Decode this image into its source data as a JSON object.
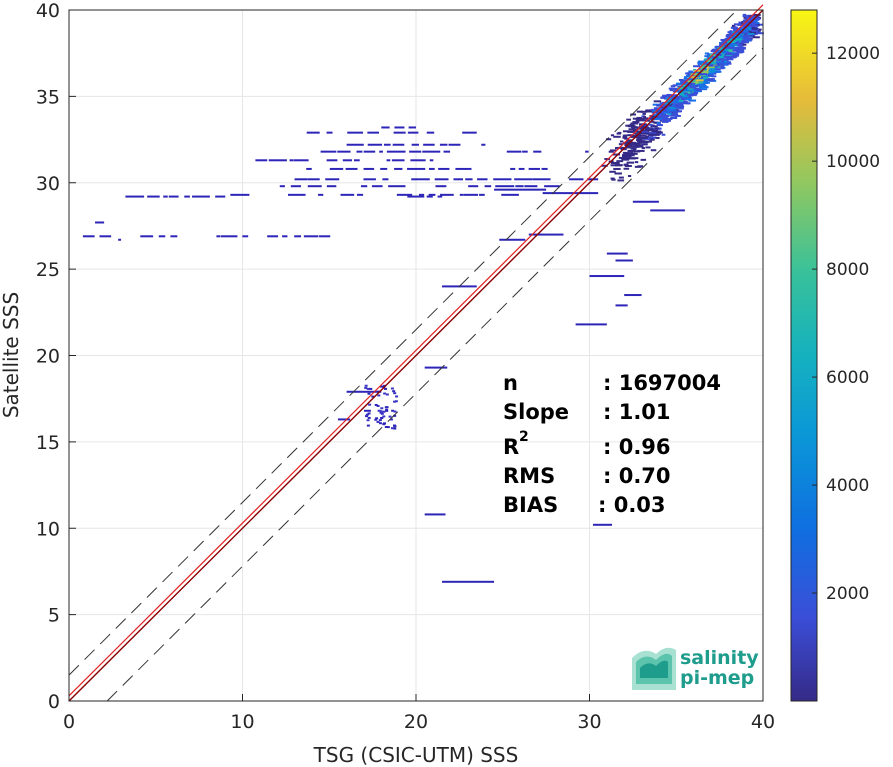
{
  "chart_data": {
    "type": "heatmap",
    "title": "",
    "xlabel": "TSG (CSIC-UTM) SSS",
    "ylabel": "Satellite SSS",
    "xlim": [
      0,
      40
    ],
    "ylim": [
      0,
      40
    ],
    "x_ticks": [
      "0",
      "10",
      "20",
      "30",
      "40"
    ],
    "y_ticks": [
      "0",
      "5",
      "10",
      "15",
      "20",
      "25",
      "30",
      "35",
      "40"
    ],
    "grid": true,
    "colorbar": {
      "ticks": [
        "2000",
        "4000",
        "6000",
        "8000",
        "10000",
        "12000"
      ],
      "tick_values": [
        2000,
        4000,
        6000,
        8000,
        10000,
        12000
      ],
      "range": [
        0,
        12800
      ],
      "colormap": "parula"
    },
    "reference_lines": {
      "one_to_one_color": "#8b0000",
      "fit_line_color": "#e0201f",
      "fit_slope": 1.01,
      "envelope_offset": 1.5,
      "envelope_style": "dashed"
    },
    "density_core": [
      {
        "x": 36.5,
        "y": 36.5,
        "count": 12000
      },
      {
        "x": 35.5,
        "y": 35.5,
        "count": 6500
      },
      {
        "x": 37.2,
        "y": 37.2,
        "count": 7000
      },
      {
        "x": 34.5,
        "y": 34.5,
        "count": 2500
      },
      {
        "x": 38.5,
        "y": 38.5,
        "count": 1500
      }
    ],
    "stats": [
      {
        "label": "n",
        "value": ": 1697004"
      },
      {
        "label": "Slope",
        "value": ": 1.01"
      },
      {
        "label": "R",
        "sup": "2",
        "value": ": 0.96"
      },
      {
        "label": "RMS",
        "value": ": 0.70"
      },
      {
        "label": "BIAS",
        "value": ": 0.03"
      }
    ]
  },
  "logo": {
    "line1": "salinity",
    "line2": "pi-mep"
  }
}
